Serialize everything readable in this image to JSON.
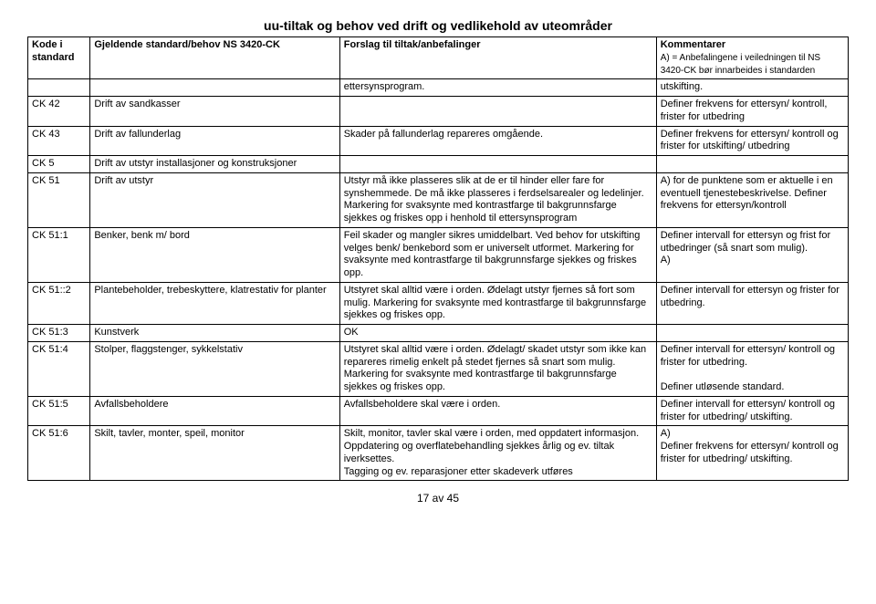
{
  "title": "uu-tiltak og behov ved drift og vedlikehold av uteområder",
  "header": {
    "col1": "Kode i standard",
    "col2": "Gjeldende standard/behov NS 3420-CK",
    "col3": "Forslag til tiltak/anbefalinger",
    "col4a": "Kommentarer",
    "col4b": "A) = Anbefalingene i veiledningen til NS 3420-CK bør innarbeides i standarden"
  },
  "rows": [
    {
      "c1": "",
      "c2": "",
      "c3": "ettersynsprogram.",
      "c4": "utskifting."
    },
    {
      "c1": "CK 42",
      "c2": "Drift av sandkasser",
      "c3": "",
      "c4": "Definer frekvens for ettersyn/ kontroll, frister for utbedring"
    },
    {
      "c1": "CK 43",
      "c2": "Drift av fallunderlag",
      "c3": "Skader på fallunderlag repareres omgående.",
      "c4": "Definer frekvens for ettersyn/ kontroll og frister for utskifting/ utbedring"
    },
    {
      "c1": "CK  5",
      "c2": "Drift av utstyr installasjoner og konstruksjoner",
      "c3": "",
      "c4": ""
    },
    {
      "c1": "CK 51",
      "c2": "Drift av utstyr",
      "c3": "Utstyr må ikke plasseres slik at de er til hinder eller fare for synshemmede. De må ikke plasseres i ferdselsarealer og ledelinjer.\nMarkering for svaksynte med kontrastfarge til bakgrunnsfarge sjekkes og friskes opp i henhold til ettersynsprogram",
      "c4": "A) for de punktene som er aktuelle i en eventuell tjenestebeskrivelse. Definer frekvens for ettersyn/kontroll"
    },
    {
      "c1": "CK 51:1",
      "c2": "Benker, benk m/ bord",
      "c3": "Feil skader og mangler sikres umiddelbart. Ved behov for utskifting velges benk/ benkebord som er universelt utformet. Markering for svaksynte med kontrastfarge til bakgrunnsfarge sjekkes og friskes opp.",
      "c4": "Definer intervall for ettersyn og frist for utbedringer (så snart som mulig).\nA)"
    },
    {
      "c1": "CK 51::2",
      "c2": "Plantebeholder, trebeskyttere, klatrestativ for planter",
      "c3": "Utstyret skal alltid være i orden. Ødelagt utstyr fjernes så fort som mulig. Markering for svaksynte med kontrastfarge til bakgrunnsfarge sjekkes og friskes opp.",
      "c4": "Definer intervall for ettersyn og frister for utbedring."
    },
    {
      "c1": "CK 51:3",
      "c2": "Kunstverk",
      "c3": "OK",
      "c4": ""
    },
    {
      "c1": "CK 51:4",
      "c2": "Stolper, flaggstenger, sykkelstativ",
      "c3": "Utstyret skal alltid være i orden. Ødelagt/ skadet utstyr som ikke kan repareres rimelig enkelt på stedet fjernes så snart som mulig.\nMarkering for svaksynte med kontrastfarge til bakgrunnsfarge sjekkes og friskes opp.",
      "c4": "Definer intervall for ettersyn/ kontroll og frister for utbedring.\n\nDefiner utløsende standard."
    },
    {
      "c1": "CK 51:5",
      "c2": "Avfallsbeholdere",
      "c3": "Avfallsbeholdere skal være i orden.",
      "c4": "Definer intervall for ettersyn/ kontroll og frister for utbedring/ utskifting."
    },
    {
      "c1": "CK 51:6",
      "c2": "Skilt, tavler, monter, speil, monitor",
      "c3": "Skilt, monitor, tavler skal være i orden, med oppdatert informasjon. Oppdatering og overflatebehandling sjekkes årlig og ev. tiltak iverksettes.\nTagging og ev. reparasjoner etter skadeverk utføres",
      "c4": "A)\nDefiner frekvens for ettersyn/ kontroll og frister for utbedring/ utskifting."
    }
  ],
  "footer": "17 av 45"
}
